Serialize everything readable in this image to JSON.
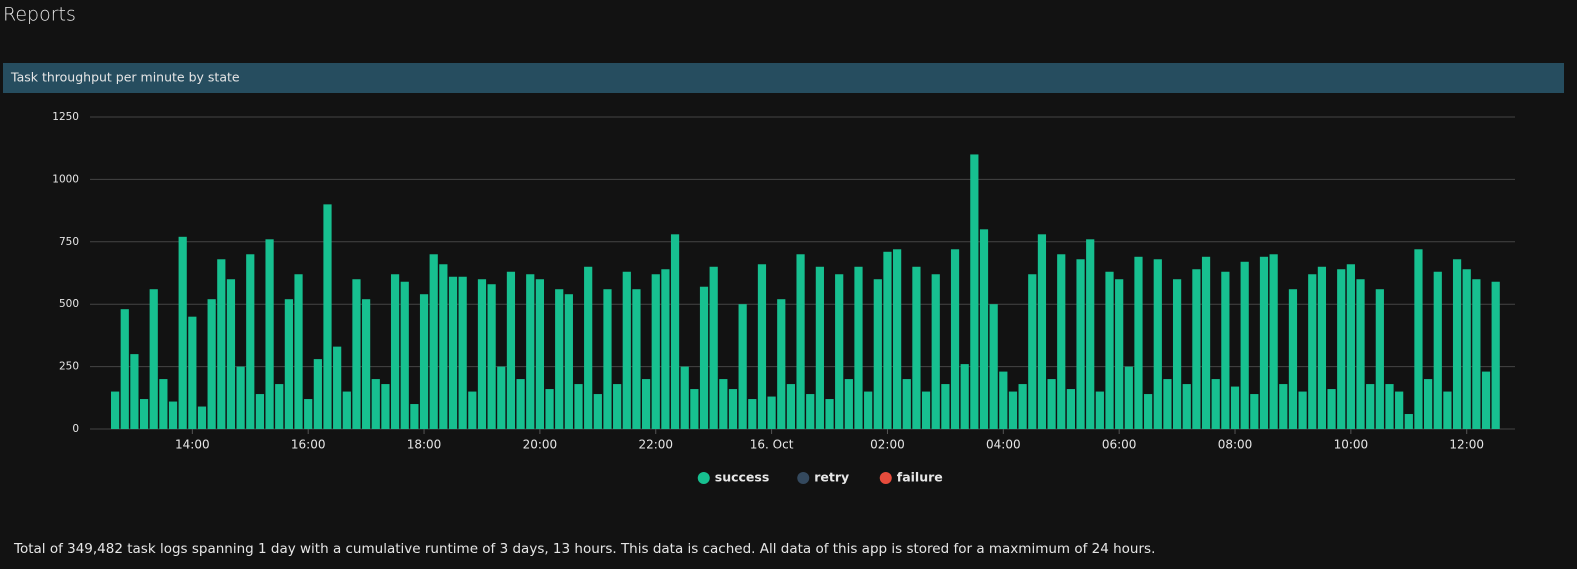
{
  "page_title": "Reports",
  "footer": "Total of 349,482 task logs spanning 1 day with a cumulative runtime of 3 days, 13 hours. This data is cached. All data of this app is stored for a maxmimum of 24 hours.",
  "chart_data": {
    "type": "bar",
    "stacked": true,
    "title": "Task throughput per minute by state",
    "x": [
      760,
      770,
      780,
      790,
      800,
      810,
      820,
      830,
      840,
      850,
      860,
      870,
      880,
      890,
      900,
      910,
      920,
      930,
      940,
      950,
      960,
      970,
      980,
      990,
      1000,
      1010,
      1020,
      1030,
      1040,
      1050,
      1060,
      1070,
      1080,
      1090,
      1100,
      1110,
      1120,
      1130,
      1140,
      1150,
      1160,
      1170,
      1180,
      1190,
      1200,
      1210,
      1220,
      1230,
      1240,
      1250,
      1260,
      1270,
      1280,
      1290,
      1300,
      1310,
      1320,
      1330,
      1340,
      1350,
      1360,
      1370,
      1380,
      1390,
      1400,
      1410,
      1420,
      1430,
      1440,
      1450,
      1460,
      1470,
      1480,
      1490,
      1500,
      1510,
      1520,
      1530,
      1540,
      1550,
      1560,
      1570,
      1580,
      1590,
      1600,
      1610,
      1620,
      1630,
      1640,
      1650,
      1660,
      1670,
      1680,
      1690,
      1700,
      1710,
      1720,
      1730,
      1740,
      1750,
      1760,
      1770,
      1780,
      1790,
      1800,
      1810,
      1820,
      1830,
      1840,
      1850,
      1860,
      1870,
      1880,
      1890,
      1900,
      1910,
      1920,
      1930,
      1940,
      1950,
      1960,
      1970,
      1980,
      1990,
      2000,
      2010,
      2020,
      2030,
      2040,
      2050,
      2060,
      2070,
      2080,
      2090,
      2100,
      2110,
      2120,
      2130,
      2140,
      2150,
      2160,
      2170,
      2180,
      2190
    ],
    "series": [
      {
        "name": "success",
        "color": "#17c090",
        "values": [
          150,
          480,
          300,
          120,
          560,
          200,
          110,
          770,
          450,
          90,
          520,
          680,
          600,
          250,
          700,
          140,
          760,
          180,
          520,
          620,
          120,
          280,
          900,
          330,
          150,
          600,
          520,
          200,
          180,
          620,
          590,
          100,
          540,
          700,
          660,
          610,
          610,
          150,
          600,
          580,
          250,
          630,
          200,
          620,
          600,
          160,
          560,
          540,
          180,
          650,
          140,
          560,
          180,
          630,
          560,
          200,
          620,
          640,
          780,
          250,
          160,
          570,
          650,
          200,
          160,
          500,
          120,
          660,
          130,
          520,
          180,
          700,
          140,
          650,
          120,
          620,
          200,
          650,
          150,
          600,
          710,
          720,
          200,
          650,
          150,
          620,
          180,
          720,
          260,
          1100,
          800,
          500,
          230,
          150,
          180,
          620,
          780,
          200,
          700,
          160,
          680,
          760,
          150,
          630,
          600,
          250,
          690,
          140,
          680,
          200,
          600,
          180,
          640,
          690,
          200,
          630,
          170,
          670,
          140,
          690,
          700,
          180,
          560,
          150,
          620,
          650,
          160,
          640,
          660,
          600,
          180,
          560,
          180,
          150,
          60,
          720,
          200,
          630,
          150,
          680,
          640,
          600,
          230,
          590
        ]
      },
      {
        "name": "retry",
        "color": "#34495e",
        "values": [
          0,
          0,
          0,
          0,
          0,
          0,
          0,
          0,
          0,
          0,
          0,
          0,
          0,
          0,
          0,
          0,
          0,
          0,
          0,
          0,
          0,
          0,
          0,
          0,
          0,
          0,
          0,
          0,
          0,
          0,
          0,
          0,
          0,
          0,
          0,
          0,
          0,
          0,
          0,
          0,
          0,
          0,
          0,
          0,
          0,
          0,
          0,
          0,
          0,
          0,
          0,
          0,
          0,
          0,
          0,
          0,
          0,
          0,
          0,
          0,
          0,
          0,
          0,
          0,
          0,
          0,
          0,
          0,
          0,
          0,
          0,
          0,
          0,
          0,
          0,
          0,
          0,
          0,
          0,
          0,
          0,
          0,
          0,
          0,
          0,
          0,
          0,
          0,
          0,
          0,
          0,
          0,
          0,
          0,
          0,
          0,
          0,
          0,
          0,
          0,
          0,
          0,
          0,
          0,
          0,
          0,
          0,
          0,
          0,
          0,
          0,
          0,
          0,
          0,
          0,
          0,
          0,
          0,
          0,
          0,
          0,
          0,
          0,
          0,
          0,
          0,
          0,
          0,
          0,
          0,
          0,
          0,
          0,
          0,
          0,
          0,
          0,
          0,
          0,
          0,
          0,
          0,
          0,
          0
        ]
      },
      {
        "name": "failure",
        "color": "#e74c3c",
        "values": [
          0,
          0,
          0,
          0,
          0,
          0,
          0,
          0,
          0,
          0,
          0,
          0,
          0,
          0,
          0,
          0,
          0,
          0,
          0,
          0,
          0,
          0,
          0,
          0,
          0,
          0,
          0,
          0,
          0,
          0,
          0,
          0,
          0,
          0,
          0,
          0,
          0,
          0,
          0,
          0,
          0,
          0,
          0,
          0,
          0,
          0,
          0,
          0,
          0,
          0,
          0,
          0,
          0,
          0,
          0,
          0,
          0,
          0,
          0,
          0,
          0,
          0,
          0,
          0,
          0,
          0,
          0,
          0,
          0,
          0,
          0,
          0,
          0,
          0,
          0,
          0,
          0,
          0,
          0,
          0,
          0,
          0,
          0,
          0,
          0,
          0,
          0,
          0,
          0,
          0,
          0,
          0,
          0,
          0,
          0,
          0,
          0,
          0,
          0,
          0,
          0,
          0,
          0,
          0,
          0,
          0,
          0,
          0,
          0,
          0,
          0,
          0,
          0,
          0,
          0,
          0,
          0,
          0,
          0,
          0,
          0,
          0,
          0,
          0,
          0,
          0,
          0,
          0,
          0,
          0,
          0,
          0,
          0,
          0,
          0,
          0,
          0,
          0,
          0,
          0,
          0,
          0,
          0,
          0
        ]
      }
    ],
    "xlim": [
      734,
      2210
    ],
    "xticks": [
      {
        "value": 840,
        "label": "14:00"
      },
      {
        "value": 960,
        "label": "16:00"
      },
      {
        "value": 1080,
        "label": "18:00"
      },
      {
        "value": 1200,
        "label": "20:00"
      },
      {
        "value": 1320,
        "label": "22:00"
      },
      {
        "value": 1440,
        "label": "16. Oct"
      },
      {
        "value": 1560,
        "label": "02:00"
      },
      {
        "value": 1680,
        "label": "04:00"
      },
      {
        "value": 1800,
        "label": "06:00"
      },
      {
        "value": 1920,
        "label": "08:00"
      },
      {
        "value": 2040,
        "label": "10:00"
      },
      {
        "value": 2160,
        "label": "12:00"
      }
    ],
    "ylim": [
      0,
      1250
    ],
    "yticks": [
      0,
      250,
      500,
      750,
      1000,
      1250
    ],
    "grid": true,
    "legend": "bottom"
  }
}
